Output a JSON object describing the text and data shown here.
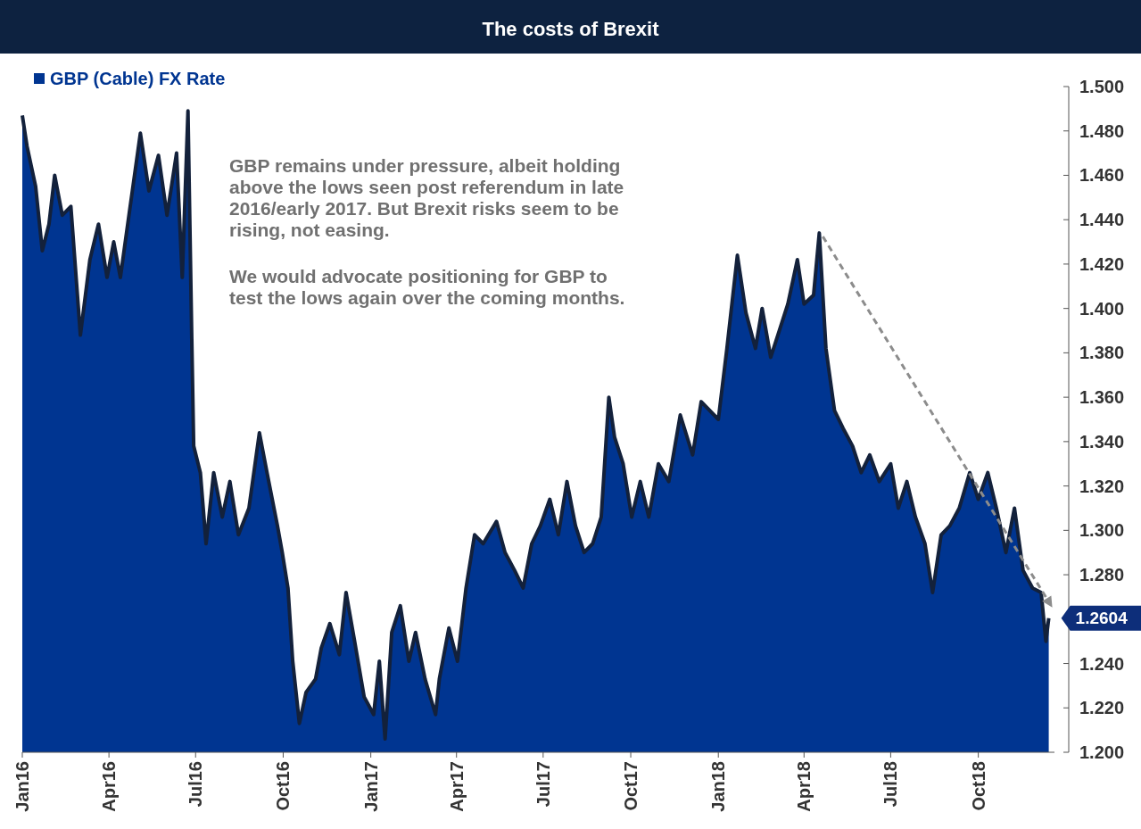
{
  "chart_data": {
    "type": "area",
    "title": "The costs of Brexit",
    "x": [
      "2016-01-01",
      "2016-01-06",
      "2016-01-15",
      "2016-01-22",
      "2016-01-29",
      "2016-02-04",
      "2016-02-12",
      "2016-02-21",
      "2016-03-02",
      "2016-03-12",
      "2016-03-21",
      "2016-03-30",
      "2016-04-06",
      "2016-04-13",
      "2016-04-22",
      "2016-05-04",
      "2016-05-13",
      "2016-05-23",
      "2016-06-01",
      "2016-06-11",
      "2016-06-17",
      "2016-06-23",
      "2016-06-27",
      "2016-06-29",
      "2016-07-06",
      "2016-07-12",
      "2016-07-20",
      "2016-07-29",
      "2016-08-06",
      "2016-08-15",
      "2016-08-26",
      "2016-09-06",
      "2016-09-14",
      "2016-09-25",
      "2016-09-30",
      "2016-10-06",
      "2016-10-11",
      "2016-10-18",
      "2016-10-25",
      "2016-11-04",
      "2016-11-10",
      "2016-11-19",
      "2016-11-29",
      "2016-12-06",
      "2016-12-15",
      "2016-12-25",
      "2017-01-04",
      "2017-01-10",
      "2017-01-16",
      "2017-01-23",
      "2017-02-01",
      "2017-02-10",
      "2017-02-17",
      "2017-02-27",
      "2017-03-10",
      "2017-03-14",
      "2017-03-24",
      "2017-04-02",
      "2017-04-11",
      "2017-04-20",
      "2017-04-29",
      "2017-05-13",
      "2017-05-22",
      "2017-06-01",
      "2017-06-10",
      "2017-06-19",
      "2017-06-28",
      "2017-07-08",
      "2017-07-17",
      "2017-07-26",
      "2017-08-04",
      "2017-08-13",
      "2017-08-22",
      "2017-08-31",
      "2017-09-08",
      "2017-09-14",
      "2017-09-23",
      "2017-10-02",
      "2017-10-11",
      "2017-10-20",
      "2017-10-30",
      "2017-11-10",
      "2017-11-22",
      "2017-12-05",
      "2017-12-14",
      "2018-01-01",
      "2018-01-10",
      "2018-01-21",
      "2018-01-30",
      "2018-02-09",
      "2018-02-16",
      "2018-02-25",
      "2018-03-06",
      "2018-03-15",
      "2018-03-25",
      "2018-04-01",
      "2018-04-11",
      "2018-04-17",
      "2018-04-24",
      "2018-05-03",
      "2018-05-12",
      "2018-05-22",
      "2018-05-31",
      "2018-06-09",
      "2018-06-19",
      "2018-07-01",
      "2018-07-09",
      "2018-07-18",
      "2018-07-27",
      "2018-08-06",
      "2018-08-14",
      "2018-08-23",
      "2018-09-01",
      "2018-09-11",
      "2018-09-22",
      "2018-10-01",
      "2018-10-11",
      "2018-10-20",
      "2018-10-30",
      "2018-11-08",
      "2018-11-17",
      "2018-11-27",
      "2018-12-06",
      "2018-12-11",
      "2018-12-14"
    ],
    "series": [
      {
        "name": "GBP (Cable) FX Rate",
        "color": "#003591",
        "values": [
          1.487,
          1.473,
          1.455,
          1.426,
          1.438,
          1.46,
          1.442,
          1.446,
          1.388,
          1.422,
          1.438,
          1.414,
          1.43,
          1.414,
          1.442,
          1.479,
          1.453,
          1.469,
          1.442,
          1.47,
          1.414,
          1.489,
          1.386,
          1.338,
          1.326,
          1.294,
          1.326,
          1.306,
          1.322,
          1.298,
          1.31,
          1.344,
          1.326,
          1.302,
          1.29,
          1.274,
          1.241,
          1.213,
          1.227,
          1.233,
          1.247,
          1.258,
          1.244,
          1.272,
          1.25,
          1.225,
          1.217,
          1.241,
          1.206,
          1.254,
          1.266,
          1.241,
          1.254,
          1.233,
          1.217,
          1.233,
          1.256,
          1.241,
          1.274,
          1.298,
          1.294,
          1.304,
          1.29,
          1.282,
          1.274,
          1.294,
          1.302,
          1.314,
          1.298,
          1.322,
          1.302,
          1.29,
          1.294,
          1.306,
          1.36,
          1.342,
          1.33,
          1.306,
          1.322,
          1.306,
          1.33,
          1.322,
          1.352,
          1.334,
          1.358,
          1.35,
          1.382,
          1.424,
          1.398,
          1.382,
          1.4,
          1.378,
          1.39,
          1.402,
          1.422,
          1.402,
          1.406,
          1.434,
          1.382,
          1.354,
          1.346,
          1.338,
          1.326,
          1.334,
          1.322,
          1.33,
          1.31,
          1.322,
          1.306,
          1.294,
          1.272,
          1.298,
          1.302,
          1.31,
          1.326,
          1.314,
          1.326,
          1.31,
          1.29,
          1.31,
          1.282,
          1.274,
          1.272,
          1.25,
          1.2604
        ]
      }
    ],
    "xlim": [
      "2016-01-01",
      "2018-12-20"
    ],
    "xticks": [
      {
        "value": "2016-01-01",
        "label": "Jan16"
      },
      {
        "value": "2016-04-01",
        "label": "Apr16"
      },
      {
        "value": "2016-07-01",
        "label": "Jul16"
      },
      {
        "value": "2016-10-01",
        "label": "Oct16"
      },
      {
        "value": "2017-01-01",
        "label": "Jan17"
      },
      {
        "value": "2017-04-01",
        "label": "Apr17"
      },
      {
        "value": "2017-07-01",
        "label": "Jul17"
      },
      {
        "value": "2017-10-01",
        "label": "Oct17"
      },
      {
        "value": "2018-01-01",
        "label": "Jan18"
      },
      {
        "value": "2018-04-01",
        "label": "Apr18"
      },
      {
        "value": "2018-07-01",
        "label": "Jul18"
      },
      {
        "value": "2018-10-01",
        "label": "Oct18"
      }
    ],
    "ylim": [
      1.2,
      1.5
    ],
    "yticks": [
      {
        "value": 1.2,
        "label": "1.200"
      },
      {
        "value": 1.22,
        "label": "1.220"
      },
      {
        "value": 1.24,
        "label": "1.240"
      },
      {
        "value": 1.26,
        "label": null
      },
      {
        "value": 1.28,
        "label": "1.280"
      },
      {
        "value": 1.3,
        "label": "1.300"
      },
      {
        "value": 1.32,
        "label": "1.320"
      },
      {
        "value": 1.34,
        "label": "1.340"
      },
      {
        "value": 1.36,
        "label": "1.360"
      },
      {
        "value": 1.38,
        "label": "1.380"
      },
      {
        "value": 1.4,
        "label": "1.400"
      },
      {
        "value": 1.42,
        "label": "1.420"
      },
      {
        "value": 1.44,
        "label": "1.440"
      },
      {
        "value": 1.46,
        "label": "1.460"
      },
      {
        "value": 1.48,
        "label": "1.480"
      },
      {
        "value": 1.5,
        "label": "1.500"
      }
    ],
    "grid": false,
    "legend": "top left",
    "marker": "none",
    "annotations": [
      "GBP remains under pressure, albeit holding above the lows seen post referendum in late 2016/early 2017. But Brexit risks seem to be rising, not easing.",
      "We would advocate positioning for GBP to test the lows again over the coming months.",
      {
        "text": "1.2604",
        "x": "2018-12-14",
        "y": 1.2604
      }
    ]
  }
}
